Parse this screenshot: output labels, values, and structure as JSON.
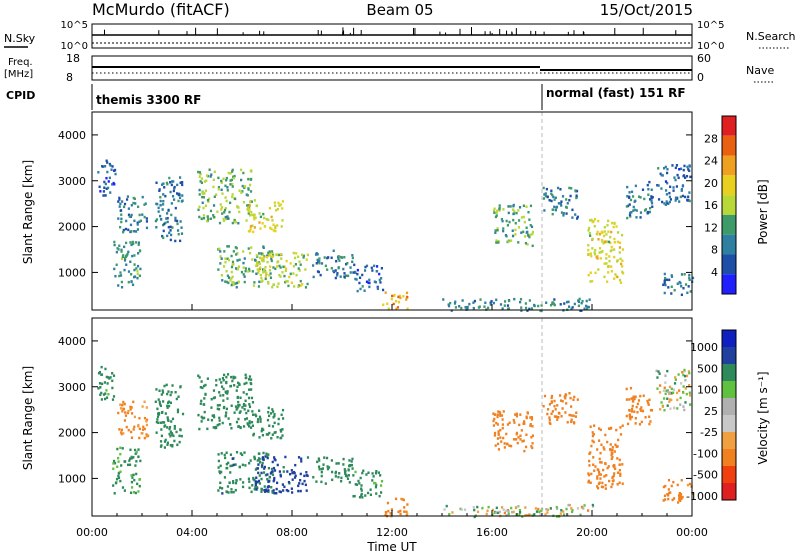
{
  "header": {
    "station": "McMurdo (fitACF)",
    "beam": "Beam 05",
    "date": "15/Oct/2015"
  },
  "status_panels": {
    "nsky_label": "N.Sky",
    "nsky_ticks": [
      "10^5",
      "10^0"
    ],
    "nsearch_label": "N.Search",
    "nsearch_ticks": [
      "10^5",
      "10^0"
    ],
    "freq_label_1": "Freq.",
    "freq_label_2": "[MHz]",
    "freq_ticks": [
      "18",
      "8"
    ],
    "nave_label": "Nave",
    "nave_ticks": [
      "60",
      "0"
    ],
    "cpid_label": "CPID",
    "cpid_segments": [
      {
        "label": "themis 3300 RF",
        "start_hour": 0
      },
      {
        "label": "normal (fast) 151 RF",
        "start_hour": 18
      }
    ]
  },
  "colors": {
    "power_scale": [
      "#2020ff",
      "#1e4fa8",
      "#2e7fa0",
      "#3f9a6a",
      "#b8d838",
      "#e8d020",
      "#f0a020",
      "#e86010",
      "#e02020"
    ],
    "velocity_scale": [
      "#e02020",
      "#f04010",
      "#f08020",
      "#f0a040",
      "#c8c8c8",
      "#b0b0b0",
      "#60c040",
      "#2e8a5a",
      "#2040a0",
      "#1020c0"
    ],
    "ground_scatter": "#a8a8a8"
  },
  "chart_data": [
    {
      "type": "heatmap",
      "name": "power",
      "ylabel": "Slant Range [km]",
      "xlabel": "",
      "ylim": [
        180,
        4500
      ],
      "xlim_hours": [
        0,
        24
      ],
      "y_ticks": [
        "1000",
        "2000",
        "3000",
        "4000"
      ],
      "colorbar_label": "Power [dB]",
      "colorbar_ticks": [
        "4",
        "8",
        "12",
        "16",
        "20",
        "24",
        "28"
      ],
      "colorbar_range": [
        0,
        32
      ],
      "scatter_regions": [
        {
          "t0": 0.2,
          "t1": 0.9,
          "r0": 2700,
          "r1": 3500,
          "level": 6
        },
        {
          "t0": 0.8,
          "t1": 1.9,
          "r0": 700,
          "r1": 1700,
          "level": 11
        },
        {
          "t0": 1.0,
          "t1": 2.2,
          "r0": 1900,
          "r1": 2700,
          "level": 9
        },
        {
          "t0": 2.5,
          "t1": 3.6,
          "r0": 1700,
          "r1": 3100,
          "level": 8
        },
        {
          "t0": 4.2,
          "t1": 6.4,
          "r0": 2100,
          "r1": 3300,
          "level": 14
        },
        {
          "t0": 6.2,
          "t1": 7.6,
          "r0": 1900,
          "r1": 2600,
          "level": 18
        },
        {
          "t0": 5.0,
          "t1": 7.2,
          "r0": 700,
          "r1": 1600,
          "level": 13
        },
        {
          "t0": 6.5,
          "t1": 8.6,
          "r0": 700,
          "r1": 1500,
          "level": 16
        },
        {
          "t0": 8.8,
          "t1": 10.4,
          "r0": 900,
          "r1": 1500,
          "level": 9
        },
        {
          "t0": 10.4,
          "t1": 11.6,
          "r0": 600,
          "r1": 1200,
          "level": 7
        },
        {
          "t0": 11.6,
          "t1": 12.6,
          "r0": 200,
          "r1": 600,
          "level": 22
        },
        {
          "t0": 16.0,
          "t1": 17.6,
          "r0": 1600,
          "r1": 2500,
          "level": 12
        },
        {
          "t0": 18.0,
          "t1": 19.4,
          "r0": 2200,
          "r1": 2900,
          "level": 8
        },
        {
          "t0": 19.8,
          "t1": 21.2,
          "r0": 800,
          "r1": 2200,
          "level": 18
        },
        {
          "t0": 21.3,
          "t1": 22.4,
          "r0": 2200,
          "r1": 3000,
          "level": 9
        },
        {
          "t0": 22.5,
          "t1": 23.9,
          "r0": 2500,
          "r1": 3400,
          "level": 7
        },
        {
          "t0": 22.8,
          "t1": 24.0,
          "r0": 500,
          "r1": 1000,
          "level": 9
        },
        {
          "t0": 14.0,
          "t1": 20.0,
          "r0": 180,
          "r1": 450,
          "level": 10
        }
      ]
    },
    {
      "type": "heatmap",
      "name": "velocity",
      "ylabel": "Slant Range [km]",
      "xlabel": "Time UT",
      "ylim": [
        180,
        4500
      ],
      "xlim_hours": [
        0,
        24
      ],
      "x_ticks": [
        "00:00",
        "04:00",
        "08:00",
        "12:00",
        "16:00",
        "20:00",
        "00:00"
      ],
      "y_ticks": [
        "1000",
        "2000",
        "3000",
        "4000"
      ],
      "colorbar_label": "Velocity [m s⁻¹]",
      "colorbar_ticks": [
        "1000",
        "500",
        "100",
        "25",
        "-25",
        "-100",
        "-500",
        "-1000"
      ],
      "scatter_regions": [
        {
          "t0": 0.2,
          "t1": 0.9,
          "r0": 2700,
          "r1": 3500,
          "vel": 200
        },
        {
          "t0": 0.8,
          "t1": 1.9,
          "r0": 700,
          "r1": 1700,
          "vel": 150
        },
        {
          "t0": 1.0,
          "t1": 2.2,
          "r0": 1900,
          "r1": 2700,
          "vel": -150
        },
        {
          "t0": 2.5,
          "t1": 3.6,
          "r0": 1700,
          "r1": 3100,
          "vel": 300
        },
        {
          "t0": 4.2,
          "t1": 6.4,
          "r0": 2100,
          "r1": 3300,
          "vel": 300
        },
        {
          "t0": 6.2,
          "t1": 7.6,
          "r0": 1900,
          "r1": 2600,
          "vel": 350
        },
        {
          "t0": 5.0,
          "t1": 7.2,
          "r0": 700,
          "r1": 1600,
          "vel": 400
        },
        {
          "t0": 6.5,
          "t1": 8.6,
          "r0": 700,
          "r1": 1500,
          "vel": 600
        },
        {
          "t0": 8.8,
          "t1": 10.4,
          "r0": 900,
          "r1": 1500,
          "vel": 300
        },
        {
          "t0": 10.4,
          "t1": 11.6,
          "r0": 600,
          "r1": 1200,
          "vel": 200
        },
        {
          "t0": 11.6,
          "t1": 12.6,
          "r0": 200,
          "r1": 600,
          "vel": -200
        },
        {
          "t0": 16.0,
          "t1": 17.6,
          "r0": 1600,
          "r1": 2500,
          "vel": -300
        },
        {
          "t0": 18.0,
          "t1": 19.4,
          "r0": 2200,
          "r1": 2900,
          "vel": -300
        },
        {
          "t0": 19.8,
          "t1": 21.2,
          "r0": 800,
          "r1": 2200,
          "vel": -350
        },
        {
          "t0": 21.3,
          "t1": 22.4,
          "r0": 2200,
          "r1": 3000,
          "vel": -300
        },
        {
          "t0": 22.5,
          "t1": 23.9,
          "r0": 2500,
          "r1": 3400,
          "vel": 10
        },
        {
          "t0": 22.8,
          "t1": 24.0,
          "r0": 500,
          "r1": 1000,
          "vel": -200
        },
        {
          "t0": 14.0,
          "t1": 20.0,
          "r0": 180,
          "r1": 450,
          "vel": 0
        }
      ]
    }
  ]
}
